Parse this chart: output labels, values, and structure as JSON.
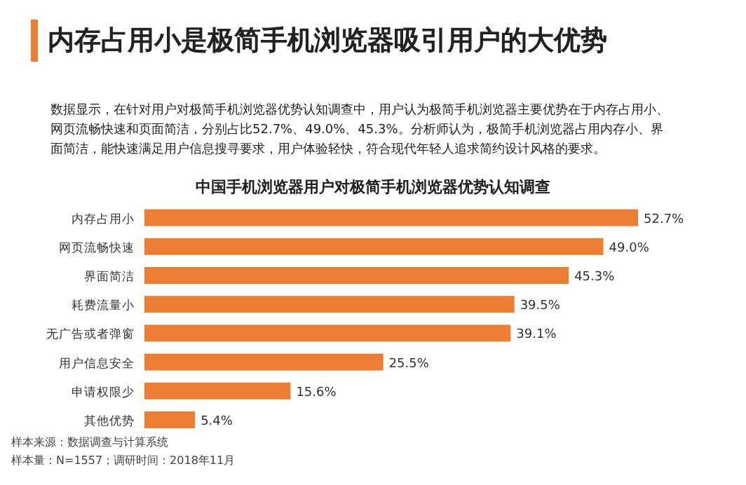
{
  "chart_data": {
    "type": "bar",
    "orientation": "horizontal",
    "title": "内存占用小是极简手机浏览器吸引用户的大优势",
    "subtitle": "中国手机浏览器用户对极简手机浏览器优势认知调查",
    "annotations": [
      "数据显示，在针对用户对极简手机浏览器优势认知调查中，用户认为极简手机浏览器主要优势在于内存占用小、网页流畅快速和页面简洁，分别占比52.7%、49.0%、45.3%。分析师认为，极简手机浏览器占用内存小、界面简洁，能快速满足用户信息搜寻要求，用户体验轻快，符合现代年轻人追求简约设计风格的要求。",
      "样本来源：数据调查与计算系统",
      "样本量：N=1557；调研时间：2018年11月"
    ],
    "categories": [
      "内存占用小",
      "网页流畅快速",
      "界面简洁",
      "耗费流量小",
      "无广告或者弹窗",
      "用户信息安全",
      "申请权限少",
      "其他优势"
    ],
    "values": [
      52.7,
      49.0,
      45.3,
      39.5,
      39.1,
      25.5,
      15.6,
      5.4
    ],
    "value_labels": [
      "52.7%",
      "49.0%",
      "45.3%",
      "39.5%",
      "39.1%",
      "25.5%",
      "15.6%",
      "5.4%"
    ],
    "color": "#ec7e33",
    "tick_labels": "y"
  }
}
